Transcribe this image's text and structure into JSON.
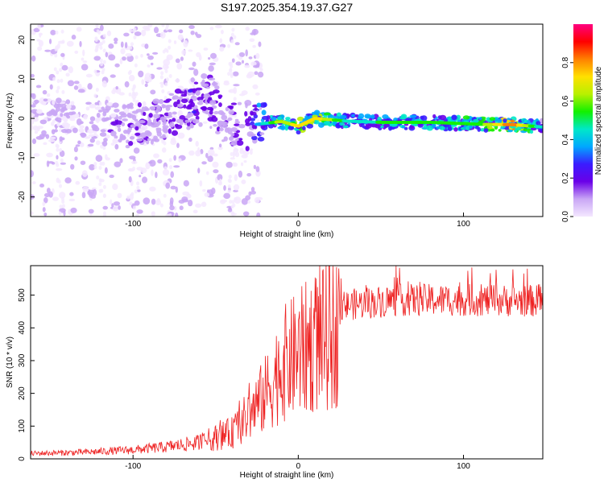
{
  "title": "S197.2025.354.19.37.G27",
  "charts": [
    {
      "type": "heatmap",
      "xlabel": "Height of straight line (km)",
      "ylabel": "Frequency (Hz)",
      "xlim": [
        -162,
        148
      ],
      "ylim": [
        -25,
        24
      ],
      "xticks": [
        "-100",
        "0",
        "100"
      ],
      "xtick_values": [
        -100,
        0,
        100
      ],
      "yticks": [
        "-20",
        "-10",
        "0",
        "10",
        "20"
      ],
      "ytick_values": [
        -20,
        -10,
        0,
        10,
        20
      ],
      "colorbar": {
        "label": "Normalized spectral amplitude",
        "ticks": [
          "0.0",
          "0.2",
          "0.4",
          "0.6",
          "0.8"
        ],
        "tick_values": [
          0,
          0.2,
          0.4,
          0.6,
          0.8
        ],
        "range": [
          0,
          1
        ],
        "stops": [
          "#f4e8ff",
          "#c9a6f5",
          "#6a00e8",
          "#3a1cff",
          "#00a8ff",
          "#00e8c8",
          "#12f000",
          "#b8f000",
          "#ffe000",
          "#ff8000",
          "#ff0000",
          "#ff0080"
        ]
      },
      "ridge_trace": {
        "x": [
          -150,
          -125,
          -100,
          -80,
          -65,
          -55,
          -45,
          -35,
          -25,
          -10,
          0,
          10,
          30,
          50,
          80,
          110,
          130,
          148
        ],
        "y": [
          -0.5,
          -1.5,
          -2.0,
          0.5,
          3.0,
          6.0,
          1.0,
          -3.0,
          -1.5,
          -0.8,
          -2.0,
          0.0,
          -0.7,
          -1.0,
          -1.0,
          -1.5,
          -1.6,
          -2.2
        ],
        "amplitude": [
          0.15,
          0.18,
          0.22,
          0.25,
          0.3,
          0.28,
          0.25,
          0.28,
          0.4,
          0.7,
          0.75,
          0.8,
          0.5,
          0.55,
          0.55,
          0.6,
          0.9,
          0.45
        ]
      }
    },
    {
      "type": "line",
      "xlabel": "Height of straight line (km)",
      "ylabel": "SNR (10 * v/v)",
      "xlim": [
        -162,
        148
      ],
      "ylim": [
        0,
        590
      ],
      "xticks": [
        "-100",
        "0",
        "100"
      ],
      "xtick_values": [
        -100,
        0,
        100
      ],
      "yticks": [
        "0",
        "100",
        "200",
        "300",
        "400",
        "500"
      ],
      "ytick_values": [
        0,
        100,
        200,
        300,
        400,
        500
      ],
      "color": "#ee2222",
      "envelope": {
        "x": [
          -162,
          -130,
          -100,
          -80,
          -60,
          -40,
          -30,
          -20,
          -10,
          0,
          10,
          20,
          30,
          60,
          100,
          148
        ],
        "y": [
          18,
          22,
          30,
          40,
          55,
          90,
          150,
          220,
          320,
          360,
          400,
          420,
          480,
          495,
          495,
          492
        ]
      }
    }
  ]
}
